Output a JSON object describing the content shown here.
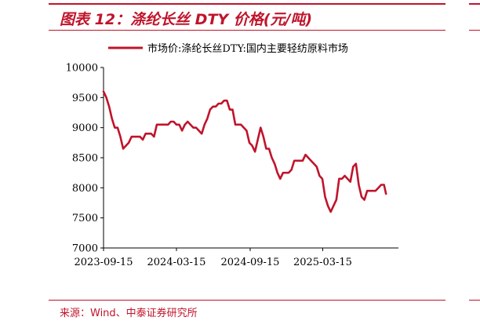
{
  "figure": {
    "title": "图表 12：涤纶长丝 DTY 价格(元/吨)",
    "source": "来源：Wind、中泰证券研究所"
  },
  "colors": {
    "accent": "#c0142b",
    "line": "#c0142b"
  },
  "chart_data": {
    "type": "line",
    "title": "",
    "xlabel": "",
    "ylabel": "",
    "ylim": [
      7000,
      10000
    ],
    "yticks": [
      7000,
      7500,
      8000,
      8500,
      9000,
      9500,
      10000
    ],
    "xticks": [
      "2023-09-15",
      "2024-03-15",
      "2024-09-15",
      "2025-03-15"
    ],
    "xlim": [
      "2023-09-15",
      "2025-09-20"
    ],
    "legend": "top",
    "grid": false,
    "series": [
      {
        "name": "市场价:涤纶长丝DTY:国内主要轻纺原料市场",
        "points": [
          [
            "2023-09-15",
            9600
          ],
          [
            "2023-09-22",
            9500
          ],
          [
            "2023-09-29",
            9350
          ],
          [
            "2023-10-06",
            9150
          ],
          [
            "2023-10-13",
            9000
          ],
          [
            "2023-10-20",
            9000
          ],
          [
            "2023-10-27",
            8850
          ],
          [
            "2023-11-03",
            8650
          ],
          [
            "2023-11-10",
            8700
          ],
          [
            "2023-11-17",
            8750
          ],
          [
            "2023-11-24",
            8850
          ],
          [
            "2023-12-01",
            8850
          ],
          [
            "2023-12-08",
            8850
          ],
          [
            "2023-12-15",
            8850
          ],
          [
            "2023-12-22",
            8800
          ],
          [
            "2023-12-29",
            8900
          ],
          [
            "2024-01-05",
            8900
          ],
          [
            "2024-01-12",
            8900
          ],
          [
            "2024-01-19",
            8850
          ],
          [
            "2024-01-26",
            9050
          ],
          [
            "2024-02-02",
            9050
          ],
          [
            "2024-02-09",
            9050
          ],
          [
            "2024-02-16",
            9050
          ],
          [
            "2024-02-23",
            9050
          ],
          [
            "2024-03-01",
            9100
          ],
          [
            "2024-03-08",
            9100
          ],
          [
            "2024-03-15",
            9050
          ],
          [
            "2024-03-22",
            9050
          ],
          [
            "2024-03-29",
            8950
          ],
          [
            "2024-04-05",
            9050
          ],
          [
            "2024-04-12",
            9100
          ],
          [
            "2024-04-19",
            9050
          ],
          [
            "2024-04-26",
            9000
          ],
          [
            "2024-05-03",
            9000
          ],
          [
            "2024-05-10",
            8950
          ],
          [
            "2024-05-17",
            8900
          ],
          [
            "2024-05-24",
            9050
          ],
          [
            "2024-05-31",
            9150
          ],
          [
            "2024-06-07",
            9300
          ],
          [
            "2024-06-14",
            9350
          ],
          [
            "2024-06-21",
            9350
          ],
          [
            "2024-06-28",
            9400
          ],
          [
            "2024-07-05",
            9400
          ],
          [
            "2024-07-12",
            9450
          ],
          [
            "2024-07-19",
            9450
          ],
          [
            "2024-07-26",
            9300
          ],
          [
            "2024-08-02",
            9300
          ],
          [
            "2024-08-09",
            9050
          ],
          [
            "2024-08-16",
            9050
          ],
          [
            "2024-08-23",
            9050
          ],
          [
            "2024-08-30",
            9000
          ],
          [
            "2024-09-06",
            8950
          ],
          [
            "2024-09-13",
            8750
          ],
          [
            "2024-09-20",
            8700
          ],
          [
            "2024-09-27",
            8600
          ],
          [
            "2024-10-04",
            8800
          ],
          [
            "2024-10-11",
            9000
          ],
          [
            "2024-10-18",
            8850
          ],
          [
            "2024-10-25",
            8650
          ],
          [
            "2024-11-01",
            8650
          ],
          [
            "2024-11-08",
            8500
          ],
          [
            "2024-11-15",
            8400
          ],
          [
            "2024-11-22",
            8250
          ],
          [
            "2024-11-29",
            8150
          ],
          [
            "2024-12-06",
            8250
          ],
          [
            "2024-12-13",
            8250
          ],
          [
            "2024-12-20",
            8250
          ],
          [
            "2024-12-27",
            8300
          ],
          [
            "2025-01-03",
            8450
          ],
          [
            "2025-01-10",
            8450
          ],
          [
            "2025-01-17",
            8450
          ],
          [
            "2025-01-24",
            8450
          ],
          [
            "2025-01-31",
            8550
          ],
          [
            "2025-02-07",
            8500
          ],
          [
            "2025-02-14",
            8450
          ],
          [
            "2025-02-21",
            8400
          ],
          [
            "2025-02-28",
            8350
          ],
          [
            "2025-03-07",
            8200
          ],
          [
            "2025-03-14",
            8150
          ],
          [
            "2025-03-21",
            7850
          ],
          [
            "2025-03-28",
            7700
          ],
          [
            "2025-04-04",
            7600
          ],
          [
            "2025-04-11",
            7700
          ],
          [
            "2025-04-18",
            7800
          ],
          [
            "2025-04-25",
            8150
          ],
          [
            "2025-05-02",
            8150
          ],
          [
            "2025-05-09",
            8200
          ],
          [
            "2025-05-16",
            8150
          ],
          [
            "2025-05-23",
            8100
          ],
          [
            "2025-05-30",
            8350
          ],
          [
            "2025-06-06",
            8400
          ],
          [
            "2025-06-13",
            8050
          ],
          [
            "2025-06-20",
            7850
          ],
          [
            "2025-06-27",
            7800
          ],
          [
            "2025-07-04",
            7950
          ],
          [
            "2025-07-11",
            7950
          ],
          [
            "2025-07-18",
            7950
          ],
          [
            "2025-07-25",
            7950
          ],
          [
            "2025-08-01",
            8000
          ],
          [
            "2025-08-08",
            8050
          ],
          [
            "2025-08-15",
            8050
          ],
          [
            "2025-08-20",
            7900
          ]
        ]
      }
    ]
  }
}
